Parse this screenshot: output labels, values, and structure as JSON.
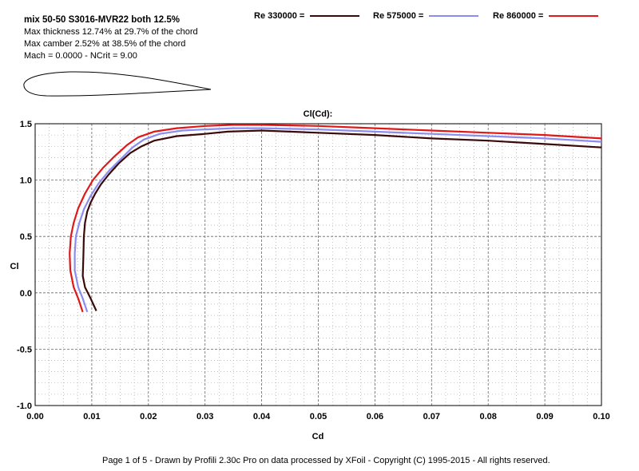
{
  "header": {
    "title": "mix 50-50 S3016-MVR22 both 12.5%",
    "line1": "Max thickness 12.74% at 29.7% of the chord",
    "line2": "Max camber 2.52% at 38.5% of the chord",
    "line3": "Mach = 0.0000 - NCrit = 9.00"
  },
  "legend": [
    {
      "label": "Re 330000 =",
      "color": "#3a0a0a"
    },
    {
      "label": "Re 575000 =",
      "color": "#8c8cf0"
    },
    {
      "label": "Re 860000 =",
      "color": "#e01818"
    }
  ],
  "footer": "Page 1 of 5   -   Drawn by Profili 2.30c Pro on data processed by  XFoil - Copyright (C) 1995-2015 - All rights reserved.",
  "chart_data": {
    "type": "line",
    "title": "Cl(Cd):",
    "xlabel": "Cd",
    "ylabel": "Cl",
    "xlim": [
      0.0,
      0.1
    ],
    "ylim": [
      -1.0,
      1.5
    ],
    "xticks": [
      "0.00",
      "0.01",
      "0.02",
      "0.03",
      "0.04",
      "0.05",
      "0.06",
      "0.07",
      "0.08",
      "0.09",
      "0.10"
    ],
    "yticks": [
      "1.5",
      "1.0",
      "0.5",
      "0.0",
      "-0.5",
      "-1.0"
    ],
    "grid": true,
    "series": [
      {
        "name": "Re 330000",
        "color": "#3a0a0a",
        "points": [
          [
            0.0108,
            -0.16
          ],
          [
            0.0098,
            -0.05
          ],
          [
            0.0088,
            0.05
          ],
          [
            0.0084,
            0.15
          ],
          [
            0.0085,
            0.3
          ],
          [
            0.0086,
            0.5
          ],
          [
            0.0088,
            0.62
          ],
          [
            0.0092,
            0.72
          ],
          [
            0.0098,
            0.8
          ],
          [
            0.0106,
            0.88
          ],
          [
            0.0116,
            0.96
          ],
          [
            0.013,
            1.05
          ],
          [
            0.0148,
            1.15
          ],
          [
            0.0168,
            1.24
          ],
          [
            0.0188,
            1.3
          ],
          [
            0.021,
            1.35
          ],
          [
            0.025,
            1.39
          ],
          [
            0.03,
            1.41
          ],
          [
            0.034,
            1.43
          ],
          [
            0.04,
            1.44
          ],
          [
            0.05,
            1.42
          ],
          [
            0.06,
            1.4
          ],
          [
            0.07,
            1.37
          ],
          [
            0.08,
            1.35
          ],
          [
            0.09,
            1.32
          ],
          [
            0.1,
            1.29
          ]
        ]
      },
      {
        "name": "Re 575000",
        "color": "#8c8cf0",
        "points": [
          [
            0.0092,
            -0.17
          ],
          [
            0.0084,
            -0.05
          ],
          [
            0.0076,
            0.05
          ],
          [
            0.007,
            0.2
          ],
          [
            0.007,
            0.35
          ],
          [
            0.0072,
            0.5
          ],
          [
            0.0078,
            0.62
          ],
          [
            0.0086,
            0.74
          ],
          [
            0.0098,
            0.86
          ],
          [
            0.0112,
            0.97
          ],
          [
            0.013,
            1.08
          ],
          [
            0.015,
            1.18
          ],
          [
            0.0172,
            1.29
          ],
          [
            0.0192,
            1.36
          ],
          [
            0.022,
            1.41
          ],
          [
            0.026,
            1.44
          ],
          [
            0.03,
            1.45
          ],
          [
            0.035,
            1.46
          ],
          [
            0.04,
            1.46
          ],
          [
            0.05,
            1.45
          ],
          [
            0.06,
            1.43
          ],
          [
            0.07,
            1.41
          ],
          [
            0.08,
            1.39
          ],
          [
            0.09,
            1.37
          ],
          [
            0.1,
            1.34
          ]
        ]
      },
      {
        "name": "Re 860000",
        "color": "#e01818",
        "points": [
          [
            0.0084,
            -0.17
          ],
          [
            0.0076,
            -0.05
          ],
          [
            0.0068,
            0.05
          ],
          [
            0.0062,
            0.2
          ],
          [
            0.0061,
            0.35
          ],
          [
            0.0063,
            0.5
          ],
          [
            0.0068,
            0.62
          ],
          [
            0.0076,
            0.75
          ],
          [
            0.0088,
            0.88
          ],
          [
            0.0102,
            1.0
          ],
          [
            0.012,
            1.11
          ],
          [
            0.014,
            1.21
          ],
          [
            0.0162,
            1.31
          ],
          [
            0.0182,
            1.38
          ],
          [
            0.021,
            1.43
          ],
          [
            0.025,
            1.46
          ],
          [
            0.03,
            1.48
          ],
          [
            0.035,
            1.49
          ],
          [
            0.04,
            1.49
          ],
          [
            0.05,
            1.48
          ],
          [
            0.06,
            1.46
          ],
          [
            0.07,
            1.44
          ],
          [
            0.08,
            1.42
          ],
          [
            0.09,
            1.4
          ],
          [
            0.1,
            1.37
          ]
        ]
      }
    ]
  }
}
